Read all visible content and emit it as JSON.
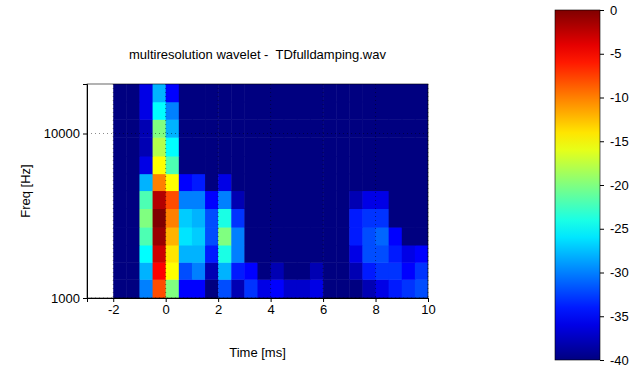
{
  "chart_data": {
    "type": "heatmap",
    "title": "multiresolution wavelet -  TDfulldamping.wav",
    "x_label": "Time [ms]",
    "y_label": "Freq [Hz]",
    "log": "y",
    "grid": true,
    "xlim": [
      -3,
      10
    ],
    "xticks": [
      -2,
      0,
      2,
      4,
      6,
      8,
      10
    ],
    "ylim": [
      1000,
      20000
    ],
    "yticks": [
      1000,
      10000
    ],
    "x_edges": [
      -3,
      -2.5,
      -2,
      -1.5,
      -1,
      -0.5,
      0,
      0.5,
      1,
      1.5,
      2,
      2.5,
      3,
      3.5,
      4,
      4.5,
      5,
      5.5,
      6,
      6.5,
      7,
      7.5,
      8,
      8.5,
      9,
      9.5,
      10
    ],
    "y_edges": [
      1000,
      1300,
      1650,
      2100,
      2700,
      3500,
      4500,
      5700,
      7300,
      9500,
      12200,
      15600,
      20000
    ],
    "z": [
      [
        null,
        null,
        -40,
        -40,
        -30,
        -8,
        -20,
        -35,
        -35,
        -40,
        -32,
        -38,
        -33,
        -36,
        -35,
        -37,
        -37,
        -36,
        -40,
        -40,
        -40,
        -38,
        -36,
        -34,
        -33,
        -32
      ],
      [
        null,
        null,
        -40,
        -40,
        -28,
        -5,
        -15,
        -32,
        -30,
        -38,
        -28,
        -34,
        -35,
        -40,
        -38,
        -40,
        -40,
        -38,
        -40,
        -40,
        -38,
        -34,
        -33,
        -33,
        -35,
        -33
      ],
      [
        null,
        null,
        -40,
        -40,
        -25,
        -3,
        -14,
        -28,
        -28,
        -34,
        -24,
        -30,
        -40,
        -40,
        -40,
        -40,
        -40,
        -40,
        -40,
        -40,
        -36,
        -32,
        -32,
        -34,
        -36,
        -35
      ],
      [
        null,
        null,
        -40,
        -40,
        -22,
        -1,
        -12,
        -26,
        -27,
        -32,
        -20,
        -30,
        -40,
        -40,
        -40,
        -40,
        -40,
        -40,
        -40,
        -40,
        -34,
        -32,
        -31,
        -35,
        -40,
        -40
      ],
      [
        null,
        null,
        -40,
        -40,
        -20,
        0,
        -10,
        -27,
        -28,
        -32,
        -24,
        -33,
        -40,
        -40,
        -40,
        -40,
        -40,
        -40,
        -40,
        -40,
        -34,
        -33,
        -33,
        -40,
        -40,
        -40
      ],
      [
        null,
        null,
        -40,
        -40,
        -22,
        -2,
        -8,
        -30,
        -30,
        -35,
        -30,
        -38,
        -40,
        -40,
        -40,
        -40,
        -40,
        -40,
        -40,
        -40,
        -38,
        -36,
        -36,
        -40,
        -40,
        -40
      ],
      [
        null,
        null,
        -40,
        -40,
        -28,
        -10,
        -15,
        -35,
        -34,
        -40,
        -36,
        -40,
        -40,
        -40,
        -40,
        -40,
        -40,
        -40,
        -40,
        -40,
        -40,
        -40,
        -40,
        -40,
        -40,
        -40
      ],
      [
        null,
        null,
        -40,
        -40,
        -36,
        -15,
        -22,
        -40,
        -40,
        -40,
        -40,
        -40,
        -40,
        -40,
        -40,
        -40,
        -40,
        -40,
        -40,
        -40,
        -40,
        -40,
        -40,
        -40,
        -40,
        -40
      ],
      [
        null,
        null,
        -40,
        -40,
        -38,
        -18,
        -25,
        -40,
        -40,
        -40,
        -40,
        -40,
        -40,
        -40,
        -40,
        -40,
        -40,
        -40,
        -40,
        -40,
        -40,
        -40,
        -40,
        -40,
        -40,
        -40
      ],
      [
        null,
        null,
        -40,
        -40,
        -38,
        -20,
        -28,
        -40,
        -40,
        -40,
        -40,
        -40,
        -40,
        -40,
        -40,
        -40,
        -40,
        -40,
        -40,
        -40,
        -40,
        -40,
        -40,
        -40,
        -40,
        -40
      ],
      [
        null,
        null,
        -40,
        -40,
        -36,
        -25,
        -30,
        -40,
        -40,
        -40,
        -40,
        -40,
        -40,
        -40,
        -40,
        -40,
        -40,
        -40,
        -40,
        -40,
        -40,
        -40,
        -40,
        -40,
        -40,
        -40
      ],
      [
        null,
        null,
        -40,
        -40,
        -36,
        -28,
        -35,
        -40,
        -40,
        -40,
        -40,
        -40,
        -40,
        -40,
        -40,
        -40,
        -40,
        -40,
        -40,
        -40,
        -40,
        -40,
        -40,
        -40,
        -40,
        -40
      ]
    ],
    "colorbar": {
      "range": [
        -40,
        0
      ],
      "ticks": [
        0,
        -5,
        -10,
        -15,
        -20,
        -25,
        -30,
        -35,
        -40
      ]
    }
  }
}
